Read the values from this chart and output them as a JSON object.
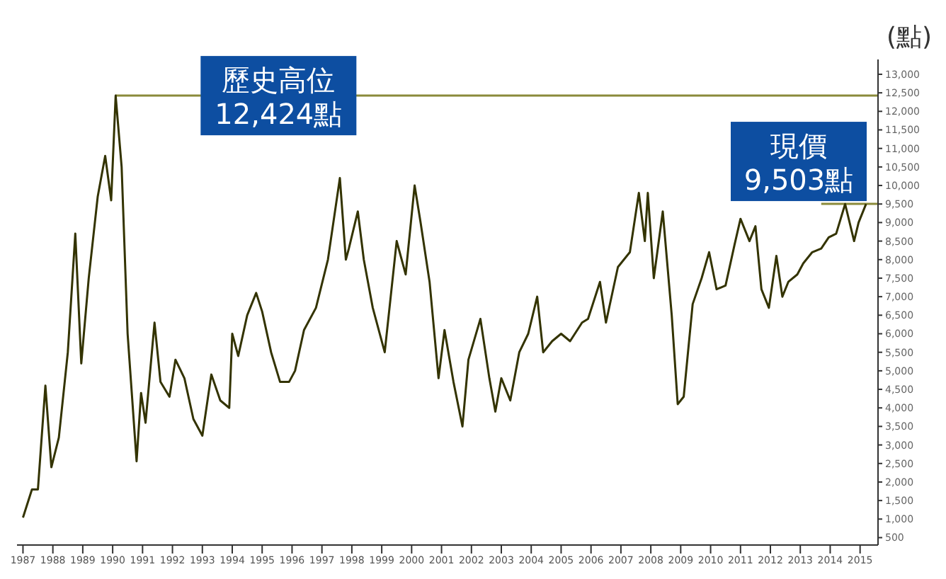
{
  "chart_data": {
    "type": "line",
    "ylabel": "(點)",
    "x": [
      1987.0,
      1987.3,
      1987.5,
      1987.75,
      1987.95,
      1988.2,
      1988.5,
      1988.75,
      1988.95,
      1989.2,
      1989.5,
      1989.75,
      1989.95,
      1990.1,
      1990.3,
      1990.5,
      1990.8,
      1990.95,
      1991.1,
      1991.4,
      1991.6,
      1991.9,
      1992.1,
      1992.4,
      1992.7,
      1993.0,
      1993.3,
      1993.6,
      1993.9,
      1994.0,
      1994.2,
      1994.5,
      1994.8,
      1995.0,
      1995.3,
      1995.6,
      1995.9,
      1996.1,
      1996.4,
      1996.8,
      1997.2,
      1997.6,
      1997.8,
      1997.9,
      1998.2,
      1998.4,
      1998.7,
      1999.1,
      1999.3,
      1999.5,
      1999.8,
      2000.1,
      2000.3,
      2000.6,
      2000.9,
      2001.1,
      2001.4,
      2001.7,
      2001.9,
      2002.3,
      2002.6,
      2002.8,
      2003.0,
      2003.3,
      2003.6,
      2003.9,
      2004.2,
      2004.4,
      2004.7,
      2005.0,
      2005.3,
      2005.7,
      2005.9,
      2006.3,
      2006.5,
      2006.9,
      2007.3,
      2007.6,
      2007.8,
      2007.9,
      2008.1,
      2008.4,
      2008.7,
      2008.9,
      2009.1,
      2009.4,
      2009.7,
      2009.95,
      2010.2,
      2010.5,
      2010.8,
      2011.0,
      2011.3,
      2011.5,
      2011.7,
      2011.95,
      2012.2,
      2012.4,
      2012.6,
      2012.9,
      2013.1,
      2013.4,
      2013.7,
      2013.95,
      2014.2,
      2014.5,
      2014.8,
      2014.95,
      2015.2
    ],
    "series": [
      {
        "color": "#333300",
        "values": [
          1040,
          1800,
          1800,
          4600,
          2400,
          3200,
          5500,
          8700,
          5200,
          7500,
          9700,
          10800,
          9600,
          12424,
          10500,
          6000,
          2560,
          4400,
          3600,
          6300,
          4700,
          4300,
          5300,
          4800,
          3700,
          3250,
          4900,
          4200,
          4000,
          6000,
          5400,
          6500,
          7100,
          6600,
          5500,
          4700,
          4700,
          5000,
          6100,
          6700,
          8000,
          10200,
          8000,
          8300,
          9300,
          8000,
          6700,
          5500,
          7000,
          8500,
          7600,
          10000,
          9000,
          7400,
          4800,
          6100,
          4700,
          3500,
          5300,
          6400,
          4800,
          3900,
          4800,
          4200,
          5500,
          6000,
          7000,
          5500,
          5800,
          6000,
          5800,
          6300,
          6400,
          7400,
          6300,
          7800,
          8200,
          9800,
          8500,
          9800,
          7500,
          9300,
          6500,
          4100,
          4300,
          6800,
          7500,
          8200,
          7200,
          7300,
          8400,
          9100,
          8500,
          8900,
          7200,
          6700,
          8100,
          7000,
          7400,
          7600,
          7900,
          8200,
          8300,
          8600,
          8700,
          9500,
          8500,
          9000,
          9503
        ]
      }
    ],
    "xlim": [
      1986.8,
      2015.6
    ],
    "xticks": [
      1987,
      1988,
      1989,
      1990,
      1991,
      1992,
      1993,
      1994,
      1995,
      1996,
      1997,
      1998,
      1999,
      2000,
      2001,
      2002,
      2003,
      2004,
      2005,
      2006,
      2007,
      2008,
      2009,
      2010,
      2011,
      2012,
      2013,
      2014,
      2015
    ],
    "ylim": [
      300,
      13400
    ],
    "yticks": [
      {
        "value": 500,
        "label": "500"
      },
      {
        "value": 1000,
        "label": "1,000"
      },
      {
        "value": 1500,
        "label": "1,500"
      },
      {
        "value": 2000,
        "label": "2,000"
      },
      {
        "value": 2500,
        "label": "2,500"
      },
      {
        "value": 3000,
        "label": "3,000"
      },
      {
        "value": 3500,
        "label": "3,500"
      },
      {
        "value": 4000,
        "label": "4,000"
      },
      {
        "value": 4500,
        "label": "4,500"
      },
      {
        "value": 5000,
        "label": "5,000"
      },
      {
        "value": 5500,
        "label": "5,500"
      },
      {
        "value": 6000,
        "label": "6,000"
      },
      {
        "value": 6500,
        "label": "6,500"
      },
      {
        "value": 7000,
        "label": "7,000"
      },
      {
        "value": 7500,
        "label": "7,500"
      },
      {
        "value": 8000,
        "label": "8,000"
      },
      {
        "value": 8500,
        "label": "8,500"
      },
      {
        "value": 9000,
        "label": "9,000"
      },
      {
        "value": 9500,
        "label": "9,500"
      },
      {
        "value": 10000,
        "label": "10,000"
      },
      {
        "value": 10500,
        "label": "10,500"
      },
      {
        "value": 11000,
        "label": "11,000"
      },
      {
        "value": 11500,
        "label": "11,500"
      },
      {
        "value": 12000,
        "label": "12,000"
      },
      {
        "value": 12500,
        "label": "12,500"
      },
      {
        "value": 13000,
        "label": "13,000"
      }
    ],
    "ref_lines": [
      {
        "axis": "y",
        "value": 12424,
        "label": "歷史高位\n12,424點",
        "color": "#8a8a3a"
      },
      {
        "axis": "y",
        "value": 9503,
        "label": "現價\n9,503點",
        "color": "#8a8a3a"
      }
    ],
    "grid": false,
    "legend": false,
    "marker": "none",
    "line_style": "solid"
  }
}
